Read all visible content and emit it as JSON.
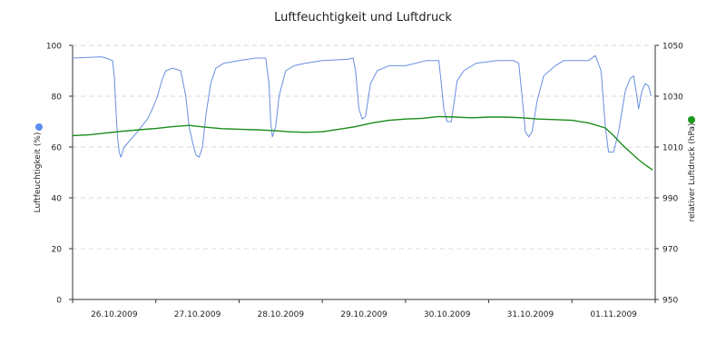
{
  "chart_data": {
    "type": "line",
    "title": "Luftfeuchtigkeit und Luftdruck",
    "x_tick_labels": [
      "26.10.2009",
      "27.10.2009",
      "28.10.2009",
      "29.10.2009",
      "30.10.2009",
      "31.10.2009",
      "01.11.2009"
    ],
    "x_range_days": [
      0,
      7
    ],
    "grid": true,
    "y_left": {
      "label": "Luftfeuchtigkeit (%)",
      "range": [
        0,
        100
      ],
      "ticks": [
        0,
        20,
        40,
        60,
        80,
        100
      ],
      "marker_color": "#5b8def"
    },
    "y_right": {
      "label": "relativer Luftdruck (hPa)",
      "range": [
        950,
        1050
      ],
      "ticks": [
        950,
        970,
        990,
        1010,
        1030,
        1050
      ],
      "marker_color": "#1a9a1a"
    },
    "series": [
      {
        "axis": "left",
        "color": "#6a8ee0",
        "points": [
          [
            0.0,
            95
          ],
          [
            0.35,
            95.5
          ],
          [
            0.4,
            95
          ],
          [
            0.48,
            94
          ],
          [
            0.5,
            88
          ],
          [
            0.52,
            75
          ],
          [
            0.54,
            64
          ],
          [
            0.56,
            58
          ],
          [
            0.58,
            56
          ],
          [
            0.62,
            60
          ],
          [
            0.7,
            63
          ],
          [
            0.78,
            66
          ],
          [
            0.85,
            69
          ],
          [
            0.9,
            71
          ],
          [
            0.96,
            75
          ],
          [
            1.02,
            80
          ],
          [
            1.08,
            87
          ],
          [
            1.12,
            90
          ],
          [
            1.2,
            91
          ],
          [
            1.3,
            90
          ],
          [
            1.36,
            80
          ],
          [
            1.4,
            68
          ],
          [
            1.44,
            62
          ],
          [
            1.48,
            57
          ],
          [
            1.52,
            56
          ],
          [
            1.56,
            60
          ],
          [
            1.6,
            72
          ],
          [
            1.66,
            85
          ],
          [
            1.72,
            91
          ],
          [
            1.82,
            93
          ],
          [
            2.0,
            94
          ],
          [
            2.2,
            95
          ],
          [
            2.32,
            95
          ],
          [
            2.36,
            85
          ],
          [
            2.38,
            70
          ],
          [
            2.4,
            64
          ],
          [
            2.44,
            68
          ],
          [
            2.48,
            80
          ],
          [
            2.56,
            90
          ],
          [
            2.66,
            92
          ],
          [
            2.8,
            93
          ],
          [
            3.0,
            94
          ],
          [
            3.3,
            94.5
          ],
          [
            3.37,
            95
          ],
          [
            3.4,
            90
          ],
          [
            3.44,
            75
          ],
          [
            3.48,
            71
          ],
          [
            3.52,
            72
          ],
          [
            3.58,
            85
          ],
          [
            3.66,
            90
          ],
          [
            3.8,
            92
          ],
          [
            4.0,
            92
          ],
          [
            4.25,
            94
          ],
          [
            4.4,
            94
          ],
          [
            4.43,
            85
          ],
          [
            4.46,
            75
          ],
          [
            4.5,
            70
          ],
          [
            4.55,
            70
          ],
          [
            4.62,
            86
          ],
          [
            4.7,
            90
          ],
          [
            4.85,
            93
          ],
          [
            5.1,
            94
          ],
          [
            5.3,
            94
          ],
          [
            5.36,
            93
          ],
          [
            5.4,
            80
          ],
          [
            5.44,
            66
          ],
          [
            5.48,
            64
          ],
          [
            5.52,
            66
          ],
          [
            5.58,
            78
          ],
          [
            5.66,
            88
          ],
          [
            5.8,
            92
          ],
          [
            5.9,
            94
          ],
          [
            6.2,
            94
          ],
          [
            6.28,
            96
          ],
          [
            6.35,
            90
          ],
          [
            6.4,
            68
          ],
          [
            6.44,
            58
          ],
          [
            6.5,
            58
          ],
          [
            6.56,
            66
          ],
          [
            6.64,
            82
          ],
          [
            6.7,
            87
          ],
          [
            6.74,
            88
          ],
          [
            6.78,
            80
          ],
          [
            6.8,
            75
          ],
          [
            6.84,
            82
          ],
          [
            6.88,
            85
          ],
          [
            6.92,
            84
          ],
          [
            6.95,
            80
          ]
        ]
      },
      {
        "axis": "right",
        "color": "#1a8c1a",
        "points": [
          [
            0.0,
            1014.5
          ],
          [
            0.2,
            1014.8
          ],
          [
            0.4,
            1015.5
          ],
          [
            0.6,
            1016.2
          ],
          [
            0.8,
            1016.8
          ],
          [
            1.0,
            1017.3
          ],
          [
            1.2,
            1018.0
          ],
          [
            1.4,
            1018.5
          ],
          [
            1.6,
            1017.8
          ],
          [
            1.8,
            1017.2
          ],
          [
            2.0,
            1017.0
          ],
          [
            2.2,
            1016.8
          ],
          [
            2.4,
            1016.5
          ],
          [
            2.6,
            1016.0
          ],
          [
            2.8,
            1015.8
          ],
          [
            3.0,
            1016.0
          ],
          [
            3.2,
            1017.0
          ],
          [
            3.4,
            1018.0
          ],
          [
            3.6,
            1019.5
          ],
          [
            3.8,
            1020.5
          ],
          [
            4.0,
            1021.0
          ],
          [
            4.2,
            1021.3
          ],
          [
            4.4,
            1022.0
          ],
          [
            4.6,
            1021.8
          ],
          [
            4.8,
            1021.5
          ],
          [
            5.0,
            1021.8
          ],
          [
            5.2,
            1021.8
          ],
          [
            5.4,
            1021.5
          ],
          [
            5.6,
            1021.0
          ],
          [
            5.8,
            1020.8
          ],
          [
            6.0,
            1020.5
          ],
          [
            6.2,
            1019.5
          ],
          [
            6.4,
            1017.5
          ],
          [
            6.5,
            1014.5
          ],
          [
            6.6,
            1011.0
          ],
          [
            6.7,
            1008.0
          ],
          [
            6.8,
            1005.0
          ],
          [
            6.9,
            1002.5
          ],
          [
            6.97,
            1001.0
          ]
        ]
      }
    ]
  }
}
